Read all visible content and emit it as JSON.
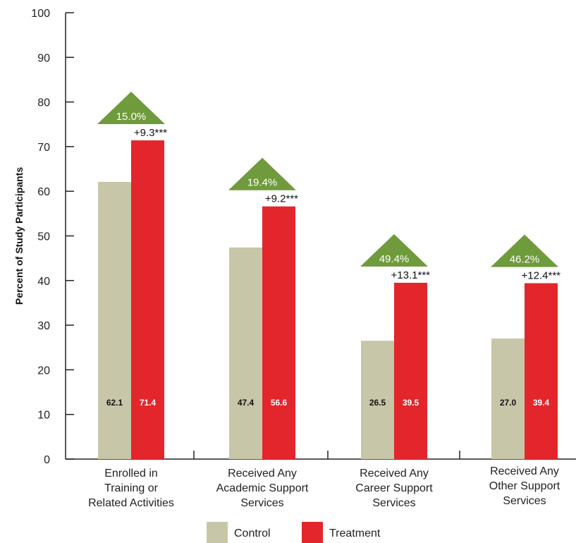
{
  "chart_data": {
    "type": "bar",
    "ylabel": "Percent of Study Participants",
    "ylim": [
      0,
      100
    ],
    "yticks": [
      "0",
      "10",
      "20",
      "30",
      "40",
      "50",
      "60",
      "70",
      "80",
      "90",
      "100"
    ],
    "categories": [
      [
        "Enrolled in",
        "Training or",
        "Related Activities"
      ],
      [
        "Received Any",
        "Academic Support",
        "Services"
      ],
      [
        "Received Any",
        "Career Support",
        "Services"
      ],
      [
        "Received Any",
        "Other Support",
        "Services"
      ]
    ],
    "series": [
      {
        "name": "Control",
        "values": [
          62.1,
          47.4,
          26.5,
          27.0
        ],
        "labels": [
          "62.1",
          "47.4",
          "26.5",
          "27.0"
        ],
        "color": "#c8c6a8"
      },
      {
        "name": "Treatment",
        "values": [
          71.4,
          56.6,
          39.5,
          39.4
        ],
        "labels": [
          "71.4",
          "56.6",
          "39.5",
          "39.4"
        ],
        "color": "#e3262b"
      }
    ],
    "differences": [
      "+9.3***",
      "+9.2***",
      "+13.1***",
      "+12.4***"
    ],
    "percent_change": [
      "15.0%",
      "19.4%",
      "49.4%",
      "46.2%"
    ],
    "triangle_color": "#6f9b3c",
    "legend_position": "bottom-center",
    "grid": false
  }
}
